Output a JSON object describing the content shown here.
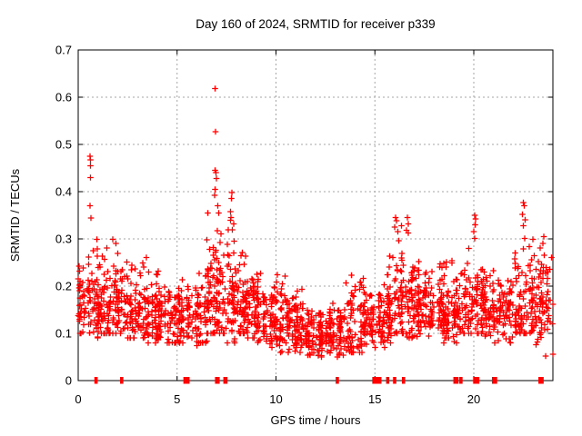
{
  "window": {
    "background": "#ffffff"
  },
  "chart_data": {
    "type": "scatter",
    "title": "Day 160 of 2024, SRMTID for receiver p339",
    "xlabel": "GPS time / hours",
    "ylabel": "SRMTID / TECUs",
    "xlim": [
      0,
      24
    ],
    "ylim": [
      0,
      0.7
    ],
    "x_ticks": [
      {
        "v": 0,
        "label": "0"
      },
      {
        "v": 5,
        "label": "5"
      },
      {
        "v": 10,
        "label": "10"
      },
      {
        "v": 15,
        "label": "15"
      },
      {
        "v": 20,
        "label": "20"
      }
    ],
    "y_ticks": [
      {
        "v": 0,
        "label": "0"
      },
      {
        "v": 0.1,
        "label": "0.1"
      },
      {
        "v": 0.2,
        "label": "0.2"
      },
      {
        "v": 0.3,
        "label": "0.3"
      },
      {
        "v": 0.4,
        "label": "0.4"
      },
      {
        "v": 0.5,
        "label": "0.5"
      },
      {
        "v": 0.6,
        "label": "0.6"
      },
      {
        "v": 0.7,
        "label": "0.7"
      }
    ],
    "grid": true,
    "legend_position": "none",
    "colors": {
      "marker": "#ff0000",
      "grid": "#a6a6a6",
      "axis": "#000000",
      "text": "#000000",
      "background": "#ffffff"
    },
    "marker": {
      "shape": "plus",
      "size": 6.6,
      "stroke_width": 1.3
    },
    "series": [
      {
        "name": "SRMTID",
        "seed": 1337,
        "representation": "density bins of the ~2000-point scatter; values in TECUs, time in GPS hours",
        "bins_format": [
          "t_start_h",
          "t_end_h",
          "count",
          "y_min",
          "y_max",
          "y_center",
          "y_spread"
        ],
        "bins": [
          [
            0,
            0.5,
            38,
            0.1,
            0.245,
            0.165,
            0.05
          ],
          [
            0.5,
            1,
            48,
            0.09,
            0.32,
            0.16,
            0.06
          ],
          [
            1,
            1.5,
            50,
            0.1,
            0.315,
            0.16,
            0.065
          ],
          [
            1.5,
            2,
            46,
            0.1,
            0.3,
            0.16,
            0.06
          ],
          [
            2,
            2.5,
            45,
            0.1,
            0.295,
            0.155,
            0.06
          ],
          [
            2.5,
            3,
            45,
            0.09,
            0.285,
            0.15,
            0.055
          ],
          [
            3,
            3.5,
            42,
            0.09,
            0.27,
            0.145,
            0.05
          ],
          [
            3.5,
            4,
            45,
            0.08,
            0.25,
            0.14,
            0.05
          ],
          [
            4,
            4.5,
            45,
            0.08,
            0.24,
            0.14,
            0.05
          ],
          [
            4.5,
            5,
            40,
            0.08,
            0.2,
            0.13,
            0.045
          ],
          [
            5,
            5.5,
            40,
            0.08,
            0.22,
            0.13,
            0.045
          ],
          [
            5.5,
            6,
            42,
            0.07,
            0.215,
            0.13,
            0.045
          ],
          [
            6,
            6.5,
            45,
            0.08,
            0.3,
            0.145,
            0.06
          ],
          [
            6.5,
            7,
            58,
            0.1,
            0.36,
            0.185,
            0.09
          ],
          [
            7,
            7.5,
            52,
            0.1,
            0.33,
            0.17,
            0.08
          ],
          [
            7.5,
            8,
            55,
            0.08,
            0.36,
            0.17,
            0.08
          ],
          [
            8,
            8.5,
            50,
            0.1,
            0.28,
            0.16,
            0.055
          ],
          [
            8.5,
            9,
            45,
            0.09,
            0.225,
            0.15,
            0.05
          ],
          [
            9,
            9.5,
            45,
            0.08,
            0.245,
            0.145,
            0.05
          ],
          [
            9.5,
            10,
            45,
            0.07,
            0.215,
            0.135,
            0.045
          ],
          [
            10,
            10.5,
            45,
            0.06,
            0.225,
            0.13,
            0.05
          ],
          [
            10.5,
            11,
            45,
            0.06,
            0.185,
            0.115,
            0.04
          ],
          [
            11,
            11.5,
            45,
            0.06,
            0.195,
            0.115,
            0.04
          ],
          [
            11.5,
            12,
            45,
            0.05,
            0.165,
            0.105,
            0.035
          ],
          [
            12,
            12.5,
            45,
            0.05,
            0.165,
            0.1,
            0.035
          ],
          [
            12.5,
            13,
            45,
            0.05,
            0.175,
            0.105,
            0.035
          ],
          [
            13,
            13.5,
            40,
            0.05,
            0.185,
            0.105,
            0.04
          ],
          [
            13.5,
            14,
            45,
            0.06,
            0.24,
            0.12,
            0.055
          ],
          [
            14,
            14.5,
            45,
            0.06,
            0.235,
            0.125,
            0.05
          ],
          [
            14.5,
            15,
            40,
            0.07,
            0.185,
            0.12,
            0.035
          ],
          [
            15,
            15.5,
            42,
            0.07,
            0.205,
            0.125,
            0.04
          ],
          [
            15.5,
            16,
            45,
            0.08,
            0.29,
            0.14,
            0.06
          ],
          [
            16,
            16.5,
            55,
            0.1,
            0.33,
            0.17,
            0.075
          ],
          [
            16.5,
            17,
            48,
            0.09,
            0.32,
            0.16,
            0.07
          ],
          [
            17,
            17.5,
            45,
            0.08,
            0.265,
            0.15,
            0.055
          ],
          [
            17.5,
            18,
            45,
            0.08,
            0.245,
            0.145,
            0.05
          ],
          [
            18,
            18.5,
            45,
            0.08,
            0.265,
            0.15,
            0.055
          ],
          [
            18.5,
            19,
            45,
            0.09,
            0.3,
            0.155,
            0.06
          ],
          [
            19,
            19.5,
            40,
            0.08,
            0.245,
            0.14,
            0.05
          ],
          [
            19.5,
            20,
            45,
            0.1,
            0.3,
            0.16,
            0.06
          ],
          [
            20,
            20.5,
            50,
            0.1,
            0.33,
            0.17,
            0.07
          ],
          [
            20.5,
            21,
            45,
            0.09,
            0.245,
            0.15,
            0.05
          ],
          [
            21,
            21.5,
            40,
            0.08,
            0.225,
            0.14,
            0.045
          ],
          [
            21.5,
            22,
            40,
            0.08,
            0.245,
            0.14,
            0.05
          ],
          [
            22,
            22.5,
            45,
            0.1,
            0.3,
            0.16,
            0.06
          ],
          [
            22.5,
            23,
            50,
            0.1,
            0.33,
            0.17,
            0.07
          ],
          [
            23,
            23.5,
            45,
            0.07,
            0.3,
            0.16,
            0.06
          ],
          [
            23.5,
            24,
            35,
            0.05,
            0.28,
            0.14,
            0.06
          ]
        ],
        "outlier_points": [
          [
            0.05,
            0.242
          ],
          [
            0.08,
            0.232
          ],
          [
            0.6,
            0.475
          ],
          [
            0.63,
            0.467
          ],
          [
            0.61,
            0.455
          ],
          [
            0.62,
            0.43
          ],
          [
            0.6,
            0.37
          ],
          [
            0.64,
            0.344
          ],
          [
            6.93,
            0.618
          ],
          [
            6.95,
            0.527
          ],
          [
            6.92,
            0.445
          ],
          [
            6.96,
            0.44
          ],
          [
            6.98,
            0.428
          ],
          [
            6.92,
            0.405
          ],
          [
            6.9,
            0.392
          ],
          [
            7.05,
            0.37
          ],
          [
            7.1,
            0.355
          ],
          [
            7.78,
            0.398
          ],
          [
            7.75,
            0.386
          ],
          [
            7.7,
            0.358
          ],
          [
            7.72,
            0.345
          ],
          [
            16.05,
            0.345
          ],
          [
            16.1,
            0.338
          ],
          [
            16.0,
            0.325
          ],
          [
            16.15,
            0.315
          ],
          [
            16.65,
            0.345
          ],
          [
            16.7,
            0.332
          ],
          [
            16.6,
            0.318
          ],
          [
            20.05,
            0.35
          ],
          [
            20.1,
            0.342
          ],
          [
            20.08,
            0.33
          ],
          [
            20.0,
            0.315
          ],
          [
            22.5,
            0.377
          ],
          [
            22.55,
            0.37
          ],
          [
            22.45,
            0.352
          ],
          [
            22.6,
            0.34
          ],
          [
            23.55,
            0.305
          ],
          [
            23.5,
            0.29
          ]
        ],
        "zero_points": [
          0.9,
          2.2,
          5.4,
          5.5,
          5.55,
          7.0,
          7.07,
          7.42,
          7.47,
          13.1,
          14.95,
          15.05,
          15.15,
          15.25,
          15.65,
          16.0,
          16.45,
          19.05,
          19.15,
          19.35,
          20.05,
          20.2,
          21.0,
          21.1,
          23.35,
          23.45
        ]
      }
    ]
  }
}
